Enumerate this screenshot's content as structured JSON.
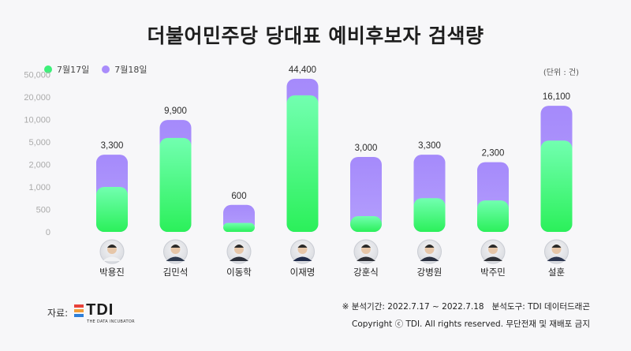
{
  "title": "더불어민주당 당대표 예비후보자 검색량",
  "legend": [
    {
      "label": "7월17일",
      "color": "#3ef07a"
    },
    {
      "label": "7월18일",
      "color": "#a98cfb"
    }
  ],
  "unit_label": "(단위 : 건)",
  "chart_data": {
    "type": "bar",
    "stacked": true,
    "categories": [
      "박용진",
      "김민석",
      "이동학",
      "이재명",
      "강훈식",
      "강병원",
      "박주민",
      "설훈"
    ],
    "totals": [
      3300,
      9900,
      600,
      44400,
      3000,
      3300,
      2300,
      16100
    ],
    "total_labels": [
      "3,300",
      "9,900",
      "600",
      "44,400",
      "3,000",
      "3,300",
      "2,300",
      "16,100"
    ],
    "y_scale": "non-linear",
    "y_ticks": [
      0,
      500,
      1000,
      2000,
      5000,
      10000,
      20000,
      50000
    ],
    "y_tick_labels": [
      "0",
      "500",
      "1,000",
      "2,000",
      "5,000",
      "10,000",
      "20,000",
      "50,000"
    ],
    "series": [
      {
        "name": "7월17일",
        "color": "#3ef07a",
        "values": [
          1000,
          5900,
          200,
          22200,
          350,
          750,
          700,
          5300
        ]
      },
      {
        "name": "7월18일",
        "color": "#a98cfb",
        "values": [
          2300,
          4000,
          400,
          22200,
          2650,
          2550,
          1600,
          10800
        ]
      }
    ],
    "ylim": [
      0,
      50000
    ]
  },
  "source_label": "자료:",
  "logo": {
    "text": "TDI",
    "subtext": "THE DATA INCUBATOR",
    "colors": [
      "#e8413a",
      "#f29d38",
      "#2f7fd8"
    ]
  },
  "footer": {
    "line1": "※ 분석기간: 2022.7.17 ~ 2022.7.18   분석도구: TDI 데이터드래곤",
    "line2": "Copyright ⓒ TDI. All rights reserved. 무단전재 및 재배포 금지"
  }
}
